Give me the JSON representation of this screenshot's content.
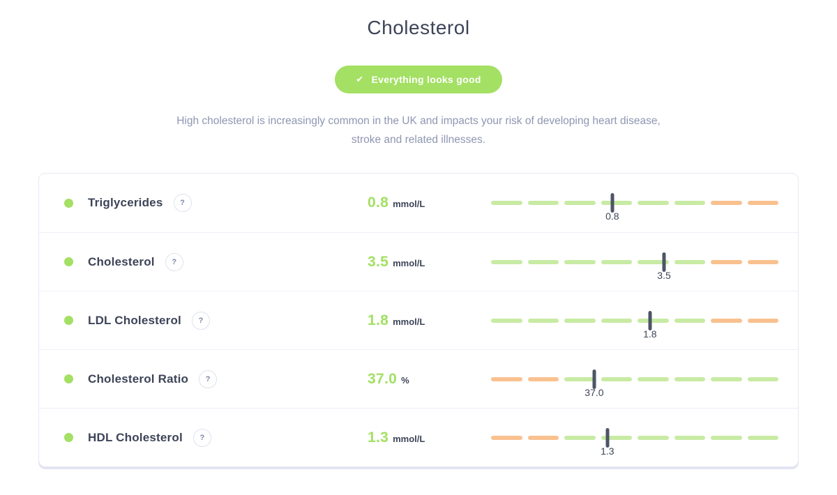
{
  "header": {
    "title": "Cholesterol",
    "badge": {
      "icon": "check",
      "label": "Everything looks good"
    },
    "description": "High cholesterol is increasingly common in the UK and impacts your risk of developing heart disease, stroke and related illnesses."
  },
  "colors": {
    "good": "#a3e063",
    "range_green": "#c8eba3",
    "range_orange": "#f9c18f",
    "marker": "#4d5566",
    "text_dark": "#3d4458",
    "text_muted": "#8e96b2"
  },
  "panel": {
    "rows": [
      {
        "label": "Triglycerides",
        "value": "0.8",
        "unit": "mmol/L",
        "status": "good",
        "marker_label": "0.8",
        "marker_pos_pct": 42.2,
        "segments": [
          "green",
          "green",
          "green",
          "green",
          "green",
          "green",
          "orange",
          "orange"
        ]
      },
      {
        "label": "Cholesterol",
        "value": "3.5",
        "unit": "mmol/L",
        "status": "good",
        "marker_label": "3.5",
        "marker_pos_pct": 60.2,
        "segments": [
          "green",
          "green",
          "green",
          "green",
          "green",
          "green",
          "orange",
          "orange"
        ]
      },
      {
        "label": "LDL Cholesterol",
        "value": "1.8",
        "unit": "mmol/L",
        "status": "good",
        "marker_label": "1.8",
        "marker_pos_pct": 55.3,
        "segments": [
          "green",
          "green",
          "green",
          "green",
          "green",
          "green",
          "orange",
          "orange"
        ]
      },
      {
        "label": "Cholesterol Ratio",
        "value": "37.0",
        "unit": "%",
        "status": "good",
        "marker_label": "37.0",
        "marker_pos_pct": 35.9,
        "segments": [
          "orange",
          "orange",
          "green",
          "green",
          "green",
          "green",
          "green",
          "green"
        ]
      },
      {
        "label": "HDL Cholesterol",
        "value": "1.3",
        "unit": "mmol/L",
        "status": "good",
        "marker_label": "1.3",
        "marker_pos_pct": 40.5,
        "segments": [
          "orange",
          "orange",
          "green",
          "green",
          "green",
          "green",
          "green",
          "green"
        ]
      }
    ]
  }
}
